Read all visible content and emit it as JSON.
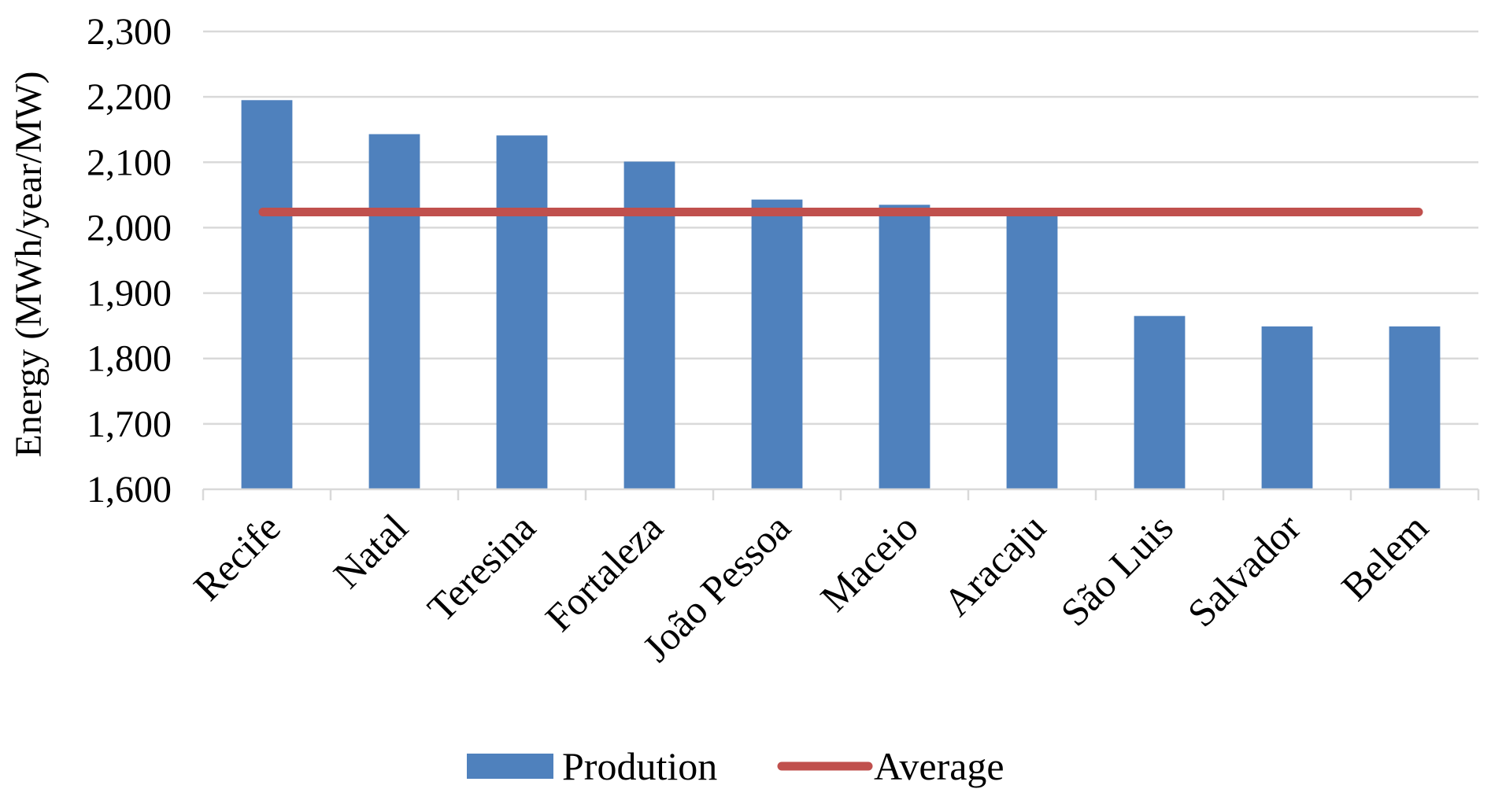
{
  "chart_data": {
    "type": "bar",
    "categories": [
      "Recife",
      "Natal",
      "Teresina",
      "Fortaleza",
      "João Pessoa",
      "Maceio",
      "Aracaju",
      "São Luis",
      "Salvador",
      "Belem"
    ],
    "series": [
      {
        "name": "Prodution",
        "type": "bar",
        "color": "#4F81BD",
        "values": [
          2195,
          2143,
          2141,
          2101,
          2043,
          2035,
          2023,
          1865,
          1849,
          1849
        ]
      },
      {
        "name": "Average",
        "type": "line",
        "color": "#C0504D",
        "values": [
          2024,
          2024,
          2024,
          2024,
          2024,
          2024,
          2024,
          2024,
          2024,
          2024
        ]
      }
    ],
    "title": "",
    "xlabel": "",
    "ylabel": "Energy (MWh/year/MW)",
    "ylim": [
      1600,
      2300
    ],
    "yticks": [
      1600,
      1700,
      1800,
      1900,
      2000,
      2100,
      2200,
      2300
    ],
    "ytick_labels": [
      "1,600",
      "1,700",
      "1,800",
      "1,900",
      "2,000",
      "2,100",
      "2,200",
      "2,300"
    ],
    "grid": "horizontal",
    "legend": "bottom"
  }
}
